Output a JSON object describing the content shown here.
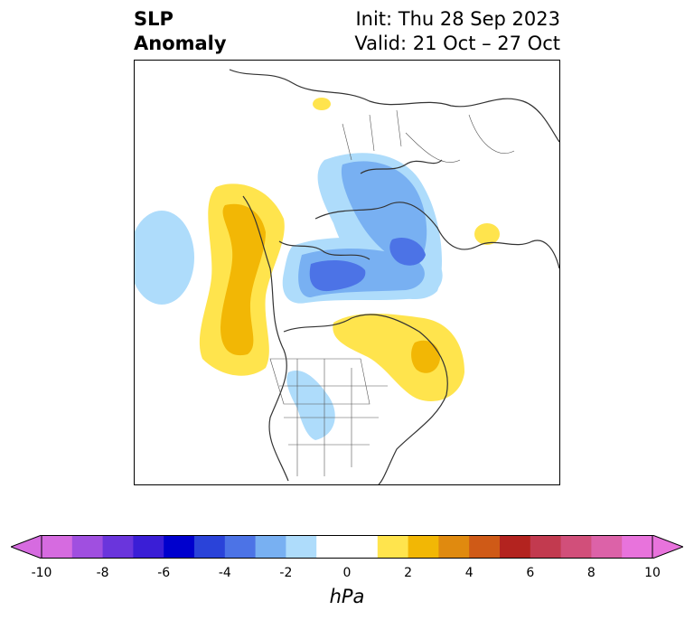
{
  "title": {
    "left_line1": "SLP",
    "left_line2": "Anomaly",
    "right_line1": "Init: Thu 28 Sep 2023",
    "right_line2": "Valid: 21 Oct – 27 Oct"
  },
  "colorbar": {
    "unit": "hPa",
    "ticks": [
      "-10",
      "-8",
      "-6",
      "-4",
      "-2",
      "0",
      "2",
      "4",
      "6",
      "8",
      "10"
    ],
    "extend": "both",
    "colors": [
      "#d66be0",
      "#a04fe0",
      "#6a35dc",
      "#3a1ed6",
      "#0000cd",
      "#2a43d9",
      "#4c73e6",
      "#78b0f2",
      "#aedcfb",
      "#ffffff",
      "#ffffff",
      "#ffe44d",
      "#f2b705",
      "#e08a0f",
      "#cf5a17",
      "#b3231f",
      "#c23a4f",
      "#d14f7a",
      "#dc62a8",
      "#e873dc"
    ],
    "under_color": "#d66be0",
    "over_color": "#e873dc"
  },
  "map": {
    "projection": "north-polar-stereographic",
    "field": "sea level pressure anomaly",
    "features": [
      "coastlines",
      "country borders",
      "state/province borders"
    ]
  }
}
